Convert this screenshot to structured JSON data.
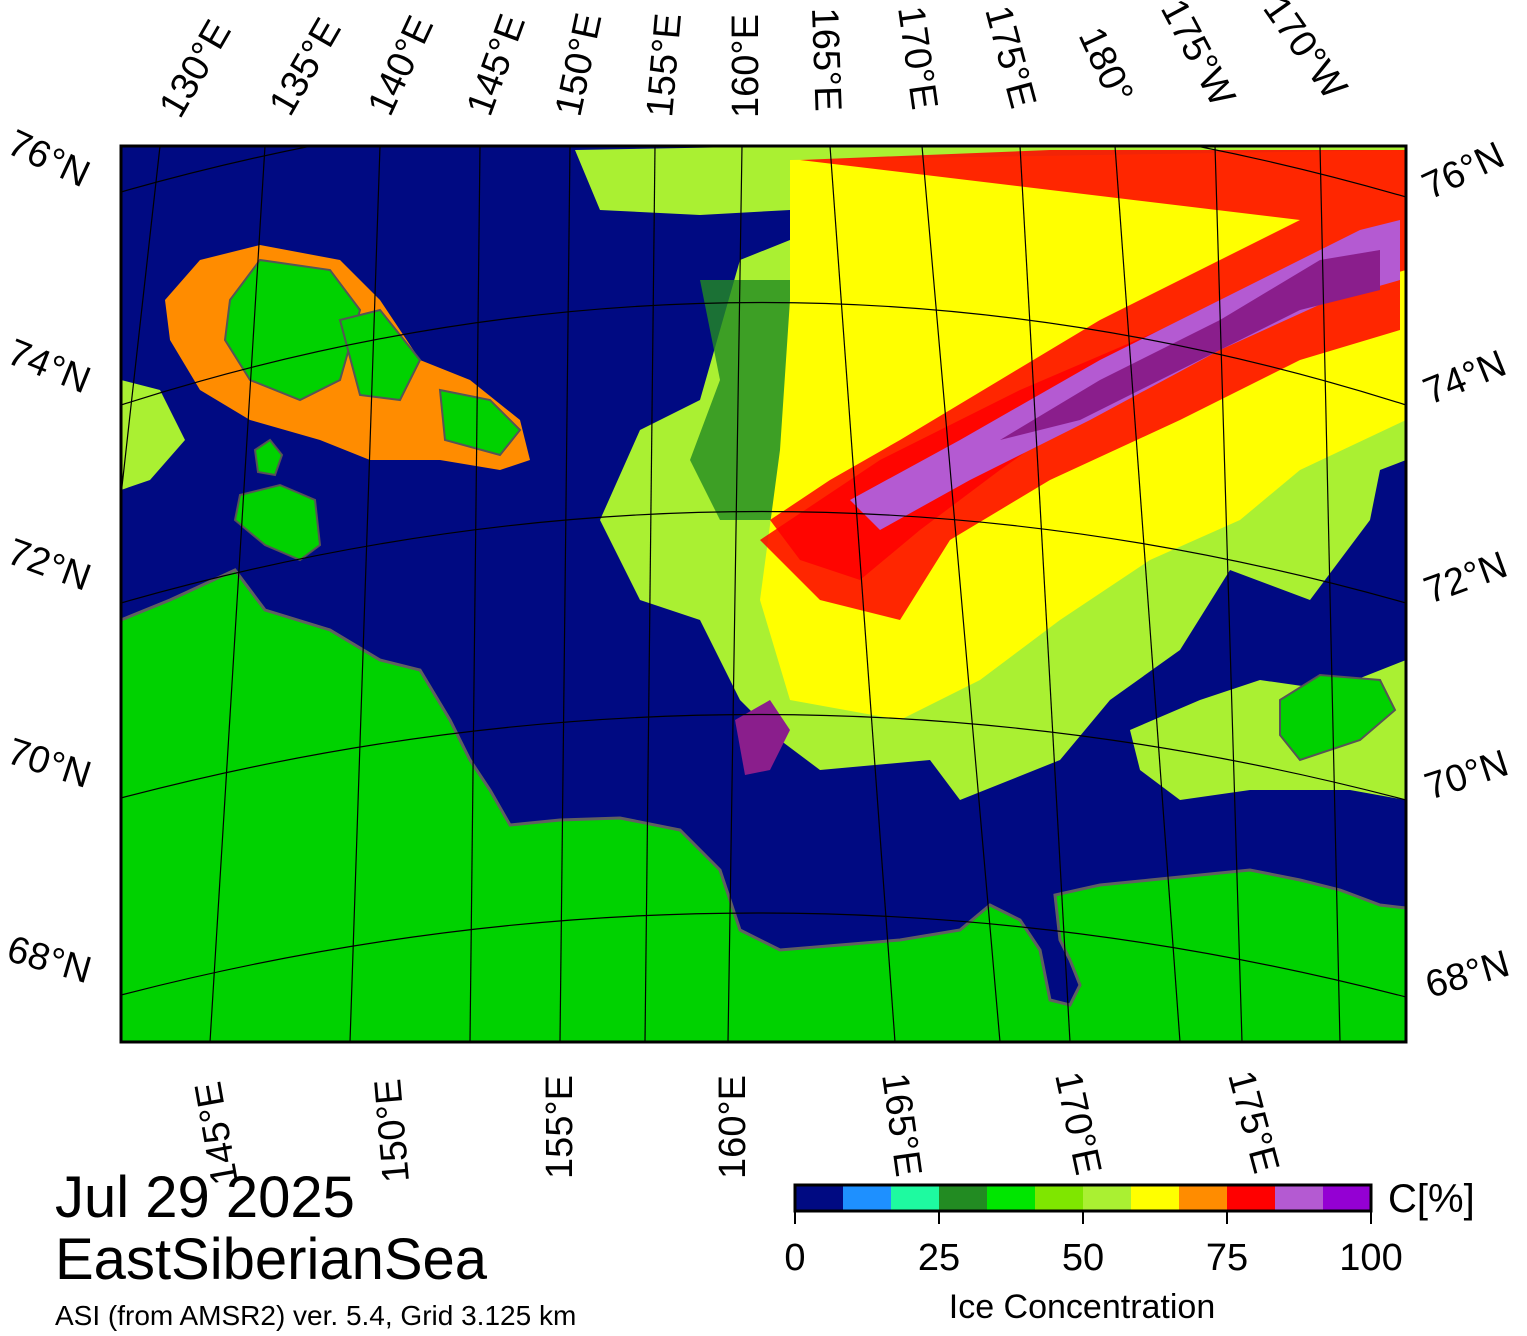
{
  "map": {
    "date": "Jul 29 2025",
    "region": "EastSiberianSea",
    "source": "ASI (from AMSR2) ver. 5.4,  Grid 3.125 km",
    "colors": {
      "ocean": "#000a82",
      "land": "#00d200",
      "frame": "#000000"
    },
    "top_lon_labels": [
      "130°E",
      "135°E",
      "140°E",
      "145°E",
      "150°E",
      "155°E",
      "160°E",
      "165°E",
      "170°E",
      "175°E",
      "180°",
      "175°W",
      "170°W"
    ],
    "bottom_lon_labels": [
      "145°E",
      "150°E",
      "155°E",
      "160°E",
      "165°E",
      "170°E",
      "175°E"
    ],
    "left_lat_labels": [
      "76°N",
      "74°N",
      "72°N",
      "70°N",
      "68°N"
    ],
    "right_lat_labels": [
      "76°N",
      "74°N",
      "72°N",
      "70°N",
      "68°N"
    ]
  },
  "colorbar": {
    "unit": "C[%]",
    "label": "Ice Concentration",
    "ticks": [
      "0",
      "25",
      "50",
      "75",
      "100"
    ],
    "bins": [
      "#000a82",
      "#1e90ff",
      "#1efaa0",
      "#228b22",
      "#00e600",
      "#7fe600",
      "#aaf032",
      "#ffff00",
      "#ff8c00",
      "#ff0000",
      "#b45ad2",
      "#9400d3"
    ]
  }
}
